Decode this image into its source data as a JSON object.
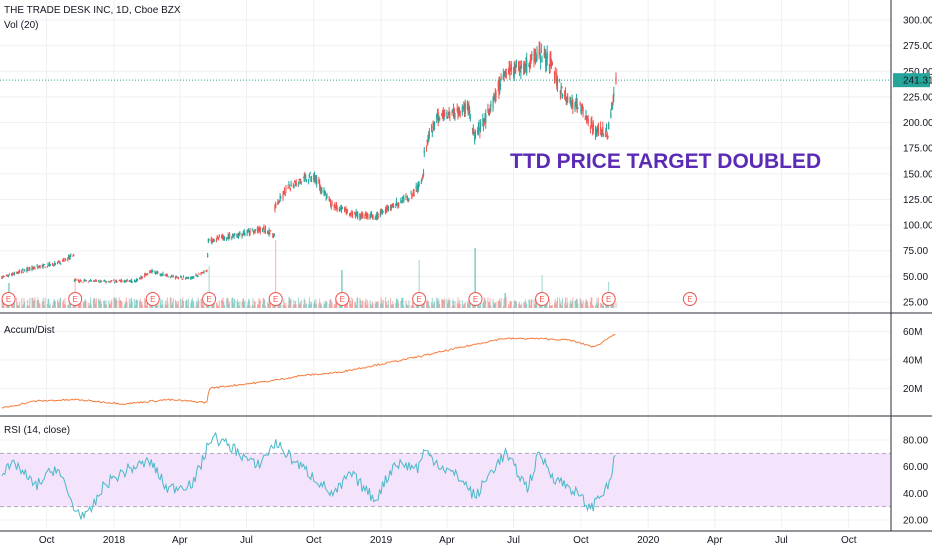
{
  "header": {
    "symbol_title": "THE TRADE DESK INC, 1D, Cboe BZX",
    "volume_label": "Vol (20)",
    "price_label": "241.31"
  },
  "panes": {
    "ad_label": "Accum/Dist",
    "rsi_label": "RSI (14, close)"
  },
  "annotation": {
    "text": "TTD PRICE TARGET DOUBLED",
    "color": "#5b2bb5"
  },
  "colors": {
    "up": "#26a69a",
    "down": "#ef5350",
    "ad_line": "#f57c3a",
    "rsi_line": "#4bb8c8",
    "rsi_band": "#f3e3fb",
    "price_line": "#26a69a",
    "earnings": "#ef5350"
  },
  "earnings_marker": "E",
  "chart_data": [
    {
      "type": "candlestick",
      "title": "THE TRADE DESK INC, 1D, Cboe BZX",
      "ylim": [
        15,
        305
      ],
      "price_ticks": [
        "300.00",
        "275.00",
        "250.00",
        "225.00",
        "200.00",
        "175.00",
        "150.00",
        "125.00",
        "100.00",
        "75.00",
        "50.00",
        "25.00"
      ],
      "last_price": 241.31,
      "x_ticks": [
        "Oct",
        "2018",
        "Apr",
        "Jul",
        "Oct",
        "2019",
        "Apr",
        "Jul",
        "Oct",
        "2020",
        "Apr",
        "Jul",
        "Oct"
      ],
      "price_path": [
        [
          "2017-08-01",
          49
        ],
        [
          "2017-09-15",
          59
        ],
        [
          "2017-10-20",
          63
        ],
        [
          "2017-11-07",
          72
        ],
        [
          "2017-11-08",
          46
        ],
        [
          "2017-12-15",
          45
        ],
        [
          "2018-02-01",
          46
        ],
        [
          "2018-02-20",
          55
        ],
        [
          "2018-03-20",
          50
        ],
        [
          "2018-04-15",
          48
        ],
        [
          "2018-05-08",
          55
        ],
        [
          "2018-05-10",
          85
        ],
        [
          "2018-06-15",
          90
        ],
        [
          "2018-07-25",
          96
        ],
        [
          "2018-08-08",
          90
        ],
        [
          "2018-08-09",
          118
        ],
        [
          "2018-09-01",
          140
        ],
        [
          "2018-10-01",
          148
        ],
        [
          "2018-10-25",
          120
        ],
        [
          "2018-11-25",
          110
        ],
        [
          "2018-12-25",
          108
        ],
        [
          "2019-01-20",
          120
        ],
        [
          "2019-02-15",
          130
        ],
        [
          "2019-02-28",
          150
        ],
        [
          "2019-03-01",
          175
        ],
        [
          "2019-03-20",
          205
        ],
        [
          "2019-05-01",
          215
        ],
        [
          "2019-05-09",
          185
        ],
        [
          "2019-06-01",
          215
        ],
        [
          "2019-06-20",
          250
        ],
        [
          "2019-07-20",
          255
        ],
        [
          "2019-08-02",
          268
        ],
        [
          "2019-08-20",
          260
        ],
        [
          "2019-09-01",
          235
        ],
        [
          "2019-09-15",
          220
        ],
        [
          "2019-10-01",
          215
        ],
        [
          "2019-10-20",
          192
        ],
        [
          "2019-11-07",
          190
        ],
        [
          "2019-11-18",
          241
        ]
      ],
      "volume_spikes": [
        [
          "2017-08-10",
          25
        ],
        [
          "2017-11-09",
          30
        ],
        [
          "2018-02-23",
          10
        ],
        [
          "2018-05-11",
          42
        ],
        [
          "2018-08-10",
          68
        ],
        [
          "2018-11-09",
          38
        ],
        [
          "2019-02-22",
          48
        ],
        [
          "2019-05-10",
          60
        ],
        [
          "2019-06-20",
          15
        ],
        [
          "2019-08-09",
          33
        ],
        [
          "2019-11-08",
          26
        ]
      ],
      "earnings_dates": [
        "2017-08-10",
        "2017-11-09",
        "2018-02-23",
        "2018-05-11",
        "2018-08-10",
        "2018-11-09",
        "2019-02-22",
        "2019-05-10",
        "2019-08-09",
        "2019-11-08",
        "2020-02-27"
      ]
    },
    {
      "type": "line",
      "title": "Accum/Dist",
      "y_ticks": [
        "60M",
        "40M",
        "20M"
      ],
      "ylim": [
        4,
        66
      ],
      "series": [
        {
          "values": [
            [
              "2017-08-01",
              6
            ],
            [
              "2017-09-15",
              11
            ],
            [
              "2017-11-10",
              12
            ],
            [
              "2018-01-15",
              9
            ],
            [
              "2018-03-15",
              12
            ],
            [
              "2018-05-08",
              10
            ],
            [
              "2018-05-11",
              20
            ],
            [
              "2018-08-01",
              25
            ],
            [
              "2018-09-15",
              29
            ],
            [
              "2018-11-01",
              31
            ],
            [
              "2019-01-01",
              37
            ],
            [
              "2019-02-28",
              43
            ],
            [
              "2019-05-01",
              50
            ],
            [
              "2019-06-15",
              55
            ],
            [
              "2019-08-01",
              55
            ],
            [
              "2019-09-15",
              54
            ],
            [
              "2019-10-20",
              49
            ],
            [
              "2019-11-18",
              59
            ]
          ]
        }
      ]
    },
    {
      "type": "line",
      "title": "RSI (14, close)",
      "y_ticks": [
        "80.00",
        "60.00",
        "40.00",
        "20.00"
      ],
      "ylim": [
        15,
        87
      ],
      "band": [
        30,
        70
      ],
      "series": [
        {
          "values": [
            [
              "2017-08-01",
              55
            ],
            [
              "2017-08-20",
              62
            ],
            [
              "2017-09-15",
              45
            ],
            [
              "2017-10-15",
              60
            ],
            [
              "2017-11-08",
              28
            ],
            [
              "2017-11-25",
              22
            ],
            [
              "2017-12-20",
              47
            ],
            [
              "2018-01-20",
              58
            ],
            [
              "2018-02-20",
              64
            ],
            [
              "2018-03-15",
              43
            ],
            [
              "2018-04-20",
              48
            ],
            [
              "2018-05-15",
              83
            ],
            [
              "2018-06-15",
              73
            ],
            [
              "2018-07-15",
              60
            ],
            [
              "2018-08-10",
              78
            ],
            [
              "2018-09-05",
              64
            ],
            [
              "2018-10-10",
              48
            ],
            [
              "2018-10-28",
              38
            ],
            [
              "2018-11-20",
              55
            ],
            [
              "2018-12-24",
              35
            ],
            [
              "2019-01-20",
              63
            ],
            [
              "2019-02-20",
              59
            ],
            [
              "2019-03-01",
              72
            ],
            [
              "2019-03-25",
              60
            ],
            [
              "2019-04-20",
              51
            ],
            [
              "2019-05-10",
              37
            ],
            [
              "2019-06-01",
              57
            ],
            [
              "2019-06-20",
              70
            ],
            [
              "2019-07-20",
              44
            ],
            [
              "2019-08-05",
              70
            ],
            [
              "2019-08-25",
              52
            ],
            [
              "2019-09-20",
              43
            ],
            [
              "2019-10-15",
              28
            ],
            [
              "2019-10-25",
              38
            ],
            [
              "2019-11-07",
              44
            ],
            [
              "2019-11-18",
              70
            ]
          ]
        }
      ]
    }
  ]
}
